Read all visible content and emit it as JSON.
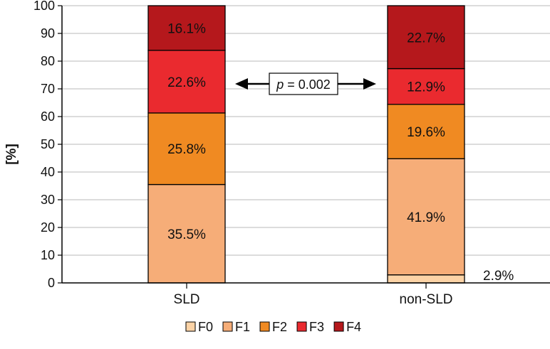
{
  "chart_data": {
    "type": "bar",
    "stacked": true,
    "title": "",
    "xlabel": "",
    "ylabel": "[%]",
    "ylim": [
      0,
      100
    ],
    "yticks": [
      0,
      10,
      20,
      30,
      40,
      50,
      60,
      70,
      80,
      90,
      100
    ],
    "grid": true,
    "categories": [
      "SLD",
      "non-SLD"
    ],
    "series": [
      {
        "name": "F0",
        "color": "#fcd3a6",
        "values": [
          0,
          2.9
        ],
        "labels": [
          "",
          "2.9%"
        ]
      },
      {
        "name": "F1",
        "color": "#f6ad78",
        "values": [
          35.5,
          41.9
        ],
        "labels": [
          "35.5%",
          "41.9%"
        ]
      },
      {
        "name": "F2",
        "color": "#f08a22",
        "values": [
          25.8,
          19.6
        ],
        "labels": [
          "25.8%",
          "19.6%"
        ]
      },
      {
        "name": "F3",
        "color": "#ea2a2f",
        "values": [
          22.6,
          12.9
        ],
        "labels": [
          "22.6%",
          "12.9%"
        ]
      },
      {
        "name": "F4",
        "color": "#b5181c",
        "values": [
          16.1,
          22.7
        ],
        "labels": [
          "16.1%",
          "22.7%"
        ]
      }
    ],
    "annotation": {
      "italic": "p",
      "rest": " = 0.002"
    },
    "legend_position": "bottom-center"
  }
}
